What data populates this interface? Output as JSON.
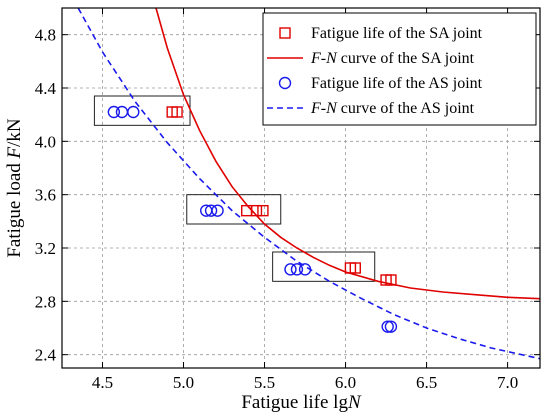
{
  "chart_data": {
    "type": "scatter",
    "xlabel": {
      "main": "Fatigue life lg",
      "italic": "N"
    },
    "ylabel": {
      "main": "Fatigue load ",
      "italic": "F",
      "unit": "/kN"
    },
    "xlim": [
      4.25,
      7.2
    ],
    "ylim": [
      2.3,
      5.0
    ],
    "xticks": [
      "4.5",
      "5.0",
      "5.5",
      "6.0",
      "6.5",
      "7.0"
    ],
    "xtick_values": [
      4.5,
      5.0,
      5.5,
      6.0,
      6.5,
      7.0
    ],
    "yticks": [
      "2.4",
      "2.8",
      "3.2",
      "3.6",
      "4.0",
      "4.4",
      "4.8"
    ],
    "ytick_values": [
      2.4,
      2.8,
      3.2,
      3.6,
      4.0,
      4.4,
      4.8
    ],
    "grid": true,
    "legend_position": "top-right",
    "colors": {
      "sa": "#e00000",
      "as": "#1a1aee"
    },
    "series": [
      {
        "name": "Fatigue life of the SA joint",
        "marker": "square",
        "points": [
          [
            4.93,
            4.22
          ],
          [
            4.96,
            4.22
          ],
          [
            5.39,
            3.48
          ],
          [
            5.45,
            3.48
          ],
          [
            5.49,
            3.48
          ],
          [
            6.03,
            3.05
          ],
          [
            6.06,
            3.05
          ],
          [
            6.25,
            2.96
          ],
          [
            6.28,
            2.96
          ]
        ]
      },
      {
        "name": "F-N curve of the SA joint",
        "name_parts": {
          "italic1": "F",
          "dash": "-",
          "italic2": "N",
          "rest": " curve of the SA joint"
        },
        "line": "solid",
        "points": [
          [
            4.83,
            5.0
          ],
          [
            4.9,
            4.7
          ],
          [
            5.0,
            4.35
          ],
          [
            5.1,
            4.08
          ],
          [
            5.2,
            3.85
          ],
          [
            5.3,
            3.66
          ],
          [
            5.4,
            3.51
          ],
          [
            5.5,
            3.38
          ],
          [
            5.6,
            3.28
          ],
          [
            5.7,
            3.2
          ],
          [
            5.8,
            3.13
          ],
          [
            5.9,
            3.07
          ],
          [
            6.0,
            3.02
          ],
          [
            6.2,
            2.95
          ],
          [
            6.4,
            2.9
          ],
          [
            6.6,
            2.87
          ],
          [
            6.8,
            2.85
          ],
          [
            7.0,
            2.83
          ],
          [
            7.2,
            2.82
          ]
        ]
      },
      {
        "name": "Fatigue life of the AS joint",
        "marker": "circle",
        "points": [
          [
            4.57,
            4.22
          ],
          [
            4.62,
            4.22
          ],
          [
            4.69,
            4.22
          ],
          [
            5.14,
            3.48
          ],
          [
            5.17,
            3.48
          ],
          [
            5.21,
            3.48
          ],
          [
            5.66,
            3.04
          ],
          [
            5.7,
            3.04
          ],
          [
            5.75,
            3.04
          ],
          [
            6.26,
            2.61
          ],
          [
            6.28,
            2.61
          ]
        ]
      },
      {
        "name": "F-N curve of the AS joint",
        "name_parts": {
          "italic1": "F",
          "dash": "-",
          "italic2": "N",
          "rest": " curve of the AS joint"
        },
        "line": "dashed",
        "points": [
          [
            4.35,
            5.0
          ],
          [
            4.5,
            4.67
          ],
          [
            4.7,
            4.3
          ],
          [
            4.9,
            3.99
          ],
          [
            5.1,
            3.72
          ],
          [
            5.3,
            3.48
          ],
          [
            5.5,
            3.28
          ],
          [
            5.7,
            3.1
          ],
          [
            5.9,
            2.95
          ],
          [
            6.1,
            2.82
          ],
          [
            6.3,
            2.7
          ],
          [
            6.5,
            2.6
          ],
          [
            6.7,
            2.52
          ],
          [
            6.9,
            2.45
          ],
          [
            7.2,
            2.37
          ]
        ]
      }
    ],
    "group_boxes": [
      {
        "x0": 4.45,
        "x1": 5.04,
        "y0": 4.12,
        "y1": 4.34
      },
      {
        "x0": 5.02,
        "x1": 5.6,
        "y0": 3.38,
        "y1": 3.6
      },
      {
        "x0": 5.55,
        "x1": 6.18,
        "y0": 2.95,
        "y1": 3.17
      }
    ]
  }
}
